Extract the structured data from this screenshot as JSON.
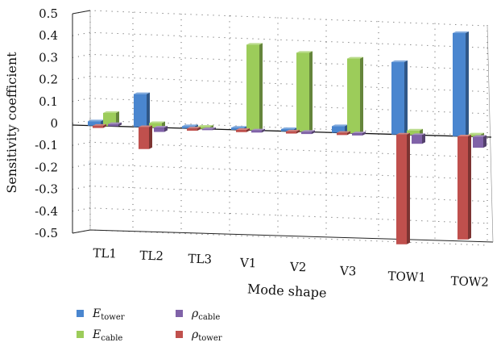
{
  "chart_data": {
    "type": "bar",
    "style": "3d-clustered",
    "categories": [
      "TL1",
      "TL2",
      "TL3",
      "V1",
      "V2",
      "V3",
      "TOW1",
      "TOW2"
    ],
    "series": [
      {
        "name": "E_tower",
        "color": "#4a86cf",
        "values": [
          0.02,
          0.15,
          0.01,
          0.01,
          0.01,
          0.03,
          0.33,
          0.47
        ]
      },
      {
        "name": "E_cable",
        "color": "#9ccc5a",
        "values": [
          0.06,
          0.02,
          0.01,
          0.39,
          0.36,
          0.34,
          0.02,
          0.01
        ]
      },
      {
        "name": "rho_cable",
        "color": "#8062a8",
        "values": [
          0.01,
          -0.02,
          0.0,
          -0.01,
          -0.01,
          -0.01,
          -0.04,
          -0.05
        ]
      },
      {
        "name": "rho_tower",
        "color": "#c0504d",
        "values": [
          -0.01,
          -0.1,
          -0.01,
          -0.01,
          -0.01,
          -0.01,
          -0.5,
          -0.47
        ]
      }
    ],
    "ylabel": "Sensitivity coefficient",
    "xlabel": "Mode shape",
    "ylim": [
      -0.5,
      0.5
    ],
    "yticks": [
      "0.5",
      "0.4",
      "0.3",
      "0.2",
      "0.1",
      "0",
      "-0.1",
      "-0.2",
      "-0.3",
      "-0.4",
      "-0.5"
    ],
    "grid": true,
    "legend": {
      "placement": "bottom-left",
      "entries": [
        {
          "base": "E",
          "sub": "tower",
          "series": "E_tower"
        },
        {
          "base": "E",
          "sub": "cable",
          "series": "E_cable"
        },
        {
          "base": "ρ",
          "sub": "cable",
          "series": "rho_cable"
        },
        {
          "base": "ρ",
          "sub": "tower",
          "series": "rho_tower"
        }
      ]
    }
  }
}
